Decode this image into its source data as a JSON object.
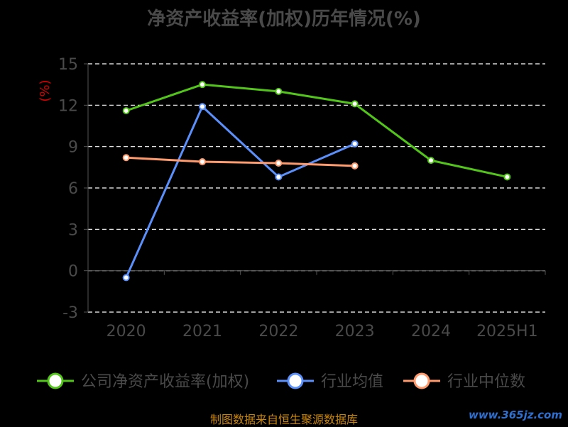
{
  "chart_data": {
    "type": "line",
    "title": "净资产收益率(加权)历年情况(%)",
    "ylabel": "(%)",
    "ylim": [
      -3,
      15
    ],
    "yticks": [
      -3,
      0,
      3,
      6,
      9,
      12,
      15
    ],
    "categories": [
      "2020",
      "2021",
      "2022",
      "2023",
      "2024",
      "2025H1"
    ],
    "grid": true,
    "legend_position": "bottom",
    "series": [
      {
        "name": "公司净资产收益率(加权)",
        "color": "#52c41a",
        "values": [
          11.6,
          13.5,
          13.0,
          12.1,
          8.0,
          6.8
        ]
      },
      {
        "name": "行业均值",
        "color": "#5b8ff9",
        "values": [
          -0.5,
          11.9,
          6.8,
          9.2,
          null,
          null
        ]
      },
      {
        "name": "行业中位数",
        "color": "#ff9a6c",
        "values": [
          8.2,
          7.9,
          7.8,
          7.6,
          null,
          null
        ]
      }
    ]
  },
  "footer": "制图数据来自恒生聚源数据库",
  "watermark": "www.365jz.com"
}
